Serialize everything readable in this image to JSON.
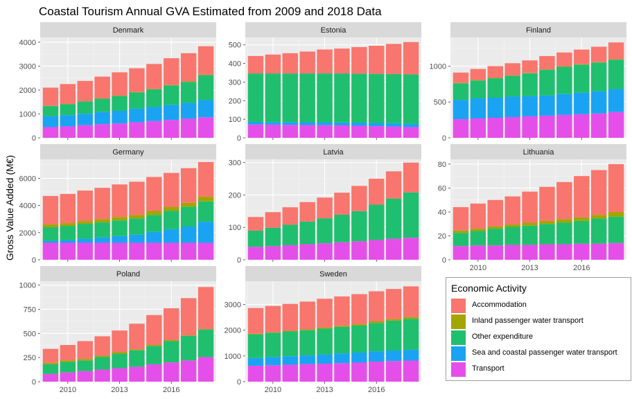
{
  "chart_data": {
    "type": "bar",
    "stacked": true,
    "title": "Coastal Tourism Annual GVA Estimated from 2009 and 2018 Data",
    "ylabel": "Gross Value Added (M€)",
    "xlabel": "",
    "years": [
      2009,
      2010,
      2011,
      2012,
      2013,
      2014,
      2015,
      2016,
      2017,
      2018
    ],
    "x_ticks": [
      2010,
      2013,
      2016
    ],
    "legend": {
      "title": "Economic Activity",
      "position": "bottom-right",
      "items": [
        {
          "name": "Accommodation",
          "color": "#F8766D"
        },
        {
          "name": "Inland passenger water transport",
          "color": "#A3A500"
        },
        {
          "name": "Other expenditure",
          "color": "#1FBF6F"
        },
        {
          "name": "Sea and coastal passenger water transport",
          "color": "#1AA3F2"
        },
        {
          "name": "Transport",
          "color": "#E54FE9"
        }
      ]
    },
    "panels": [
      {
        "country": "Denmark",
        "ylim": [
          0,
          4200
        ],
        "yticks": [
          0,
          1000,
          2000,
          3000,
          4000
        ],
        "series": {
          "Transport": [
            450,
            480,
            530,
            570,
            600,
            650,
            700,
            750,
            800,
            860
          ],
          "Sea and coastal passenger water transport": [
            450,
            470,
            480,
            510,
            530,
            570,
            590,
            630,
            660,
            720
          ],
          "Other expenditure": [
            430,
            460,
            510,
            560,
            620,
            680,
            740,
            810,
            880,
            1040
          ],
          "Inland passenger water transport": [
            10,
            10,
            10,
            10,
            15,
            15,
            15,
            20,
            20,
            20
          ],
          "Accommodation": [
            760,
            830,
            850,
            910,
            975,
            995,
            1045,
            1120,
            1180,
            1190
          ]
        }
      },
      {
        "country": "Estonia",
        "ylim": [
          0,
          540
        ],
        "yticks": [
          0,
          100,
          200,
          300,
          400,
          500
        ],
        "series": {
          "Transport": [
            72,
            71,
            70,
            69,
            68,
            67,
            65,
            63,
            61,
            58
          ],
          "Sea and coastal passenger water transport": [
            14,
            14,
            15,
            15,
            16,
            16,
            17,
            17,
            18,
            18
          ],
          "Other expenditure": [
            260,
            261,
            261,
            262,
            262,
            263,
            263,
            264,
            264,
            265
          ],
          "Inland passenger water transport": [
            0,
            0,
            0,
            0,
            0,
            0,
            0,
            0,
            0,
            0
          ],
          "Accommodation": [
            94,
            102,
            109,
            118,
            129,
            134,
            143,
            151,
            162,
            174
          ]
        }
      },
      {
        "country": "Finland",
        "ylim": [
          0,
          1400
        ],
        "yticks": [
          0,
          500,
          1000
        ],
        "series": {
          "Transport": [
            260,
            270,
            280,
            290,
            300,
            310,
            320,
            330,
            340,
            360
          ],
          "Sea and coastal passenger water transport": [
            270,
            280,
            280,
            285,
            280,
            280,
            290,
            300,
            310,
            320
          ],
          "Other expenditure": [
            230,
            250,
            270,
            290,
            320,
            360,
            380,
            390,
            400,
            410
          ],
          "Inland passenger water transport": [
            5,
            5,
            5,
            5,
            5,
            5,
            5,
            5,
            5,
            5
          ],
          "Accommodation": [
            145,
            155,
            165,
            170,
            175,
            185,
            195,
            205,
            215,
            235
          ]
        }
      },
      {
        "country": "Germany",
        "ylim": [
          0,
          7400
        ],
        "yticks": [
          0,
          2000,
          4000,
          6000
        ],
        "series": {
          "Transport": [
            1250,
            1250,
            1250,
            1250,
            1250,
            1250,
            1250,
            1250,
            1250,
            1250
          ],
          "Sea and coastal passenger water transport": [
            150,
            200,
            300,
            400,
            500,
            600,
            800,
            1000,
            1200,
            1550
          ],
          "Other expenditure": [
            1000,
            1050,
            1100,
            1100,
            1150,
            1200,
            1250,
            1350,
            1450,
            1500
          ],
          "Inland passenger water transport": [
            200,
            200,
            200,
            250,
            250,
            250,
            300,
            300,
            300,
            350
          ],
          "Accommodation": [
            2100,
            2150,
            2250,
            2300,
            2400,
            2450,
            2500,
            2500,
            2550,
            2550
          ]
        }
      },
      {
        "country": "Latvia",
        "ylim": [
          0,
          310
        ],
        "yticks": [
          0,
          100,
          200,
          300
        ],
        "series": {
          "Transport": [
            40,
            42,
            45,
            48,
            51,
            54,
            57,
            61,
            65,
            68
          ],
          "Sea and coastal passenger water transport": [
            0,
            0,
            0,
            0,
            0,
            0,
            0,
            0,
            0,
            0
          ],
          "Other expenditure": [
            50,
            57,
            63,
            70,
            77,
            85,
            93,
            109,
            124,
            140
          ],
          "Inland passenger water transport": [
            0,
            0,
            0,
            0,
            0,
            0,
            0,
            0,
            0,
            0
          ],
          "Accommodation": [
            42,
            48,
            54,
            60,
            64,
            68,
            78,
            80,
            84,
            92
          ]
        }
      },
      {
        "country": "Lithuania",
        "ylim": [
          0,
          84
        ],
        "yticks": [
          0,
          20,
          40,
          60,
          80
        ],
        "series": {
          "Transport": [
            11.5,
            12,
            12,
            12.5,
            12.5,
            13,
            13,
            13.5,
            13.5,
            14
          ],
          "Sea and coastal passenger water transport": [
            0,
            0,
            0,
            0,
            0,
            0,
            0,
            0,
            0,
            0
          ],
          "Other expenditure": [
            11,
            12,
            14,
            15,
            16,
            17,
            18,
            19,
            21,
            22
          ],
          "Inland passenger water transport": [
            2,
            2,
            2,
            2,
            2.5,
            2.5,
            3,
            3,
            3,
            4
          ],
          "Accommodation": [
            19.5,
            21,
            22,
            23.5,
            26,
            28.5,
            31,
            34.5,
            37.5,
            40
          ]
        }
      },
      {
        "country": "Poland",
        "ylim": [
          0,
          1040
        ],
        "yticks": [
          0,
          250,
          500,
          750,
          1000
        ],
        "series": {
          "Transport": [
            80,
            95,
            110,
            125,
            140,
            155,
            180,
            200,
            220,
            255
          ],
          "Sea and coastal passenger water transport": [
            0,
            0,
            0,
            0,
            0,
            0,
            0,
            0,
            0,
            0
          ],
          "Other expenditure": [
            100,
            110,
            110,
            130,
            150,
            170,
            190,
            220,
            255,
            285
          ],
          "Inland passenger water transport": [
            15,
            15,
            15,
            15,
            15,
            10,
            10,
            10,
            5,
            5
          ],
          "Accommodation": [
            145,
            160,
            185,
            200,
            225,
            265,
            310,
            330,
            385,
            435
          ]
        }
      },
      {
        "country": "Sweden",
        "ylim": [
          0,
          3900
        ],
        "yticks": [
          0,
          1000,
          2000,
          3000
        ],
        "series": {
          "Transport": [
            620,
            640,
            660,
            680,
            700,
            720,
            740,
            780,
            800,
            820
          ],
          "Sea and coastal passenger water transport": [
            300,
            320,
            330,
            340,
            360,
            380,
            390,
            400,
            410,
            420
          ],
          "Other expenditure": [
            920,
            940,
            960,
            980,
            1000,
            1030,
            1050,
            1100,
            1160,
            1200
          ],
          "Inland passenger water transport": [
            20,
            20,
            30,
            30,
            40,
            40,
            50,
            60,
            60,
            70
          ],
          "Accommodation": [
            1000,
            1020,
            1040,
            1080,
            1120,
            1140,
            1170,
            1170,
            1170,
            1190
          ]
        }
      }
    ]
  }
}
